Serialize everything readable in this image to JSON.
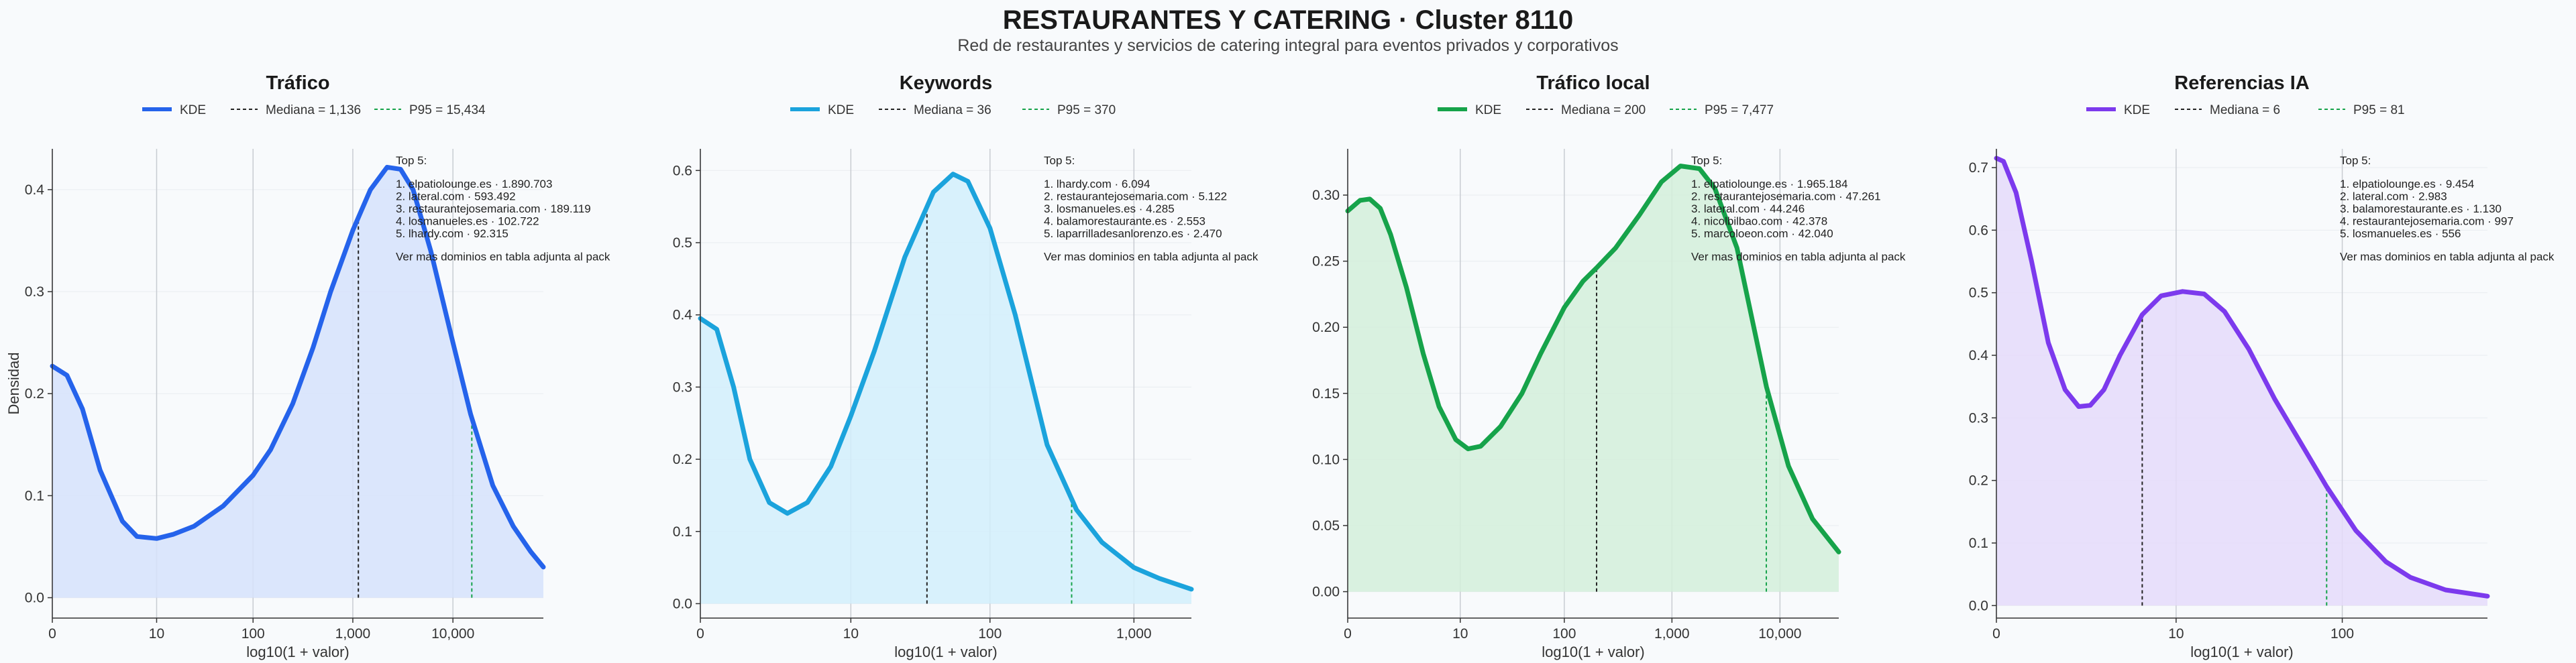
{
  "header": {
    "title": "RESTAURANTES Y CATERING · Cluster 8110",
    "subtitle": "Red de restaurantes y servicios de catering integral para eventos privados y corporativos"
  },
  "chart_data": [
    {
      "type": "area",
      "title": "Tráfico",
      "xlabel": "log10(1 + valor)",
      "ylabel": "Densidad",
      "color": "#2563eb",
      "fill": "#d6e2fb",
      "x_scale": "log10(1+x)",
      "xlim": [
        0,
        80000
      ],
      "ylim": [
        -0.02,
        0.44
      ],
      "x_ticks": [
        0,
        10,
        100,
        1000,
        10000
      ],
      "x_tick_labels": [
        "0",
        "10",
        "100",
        "1,000",
        "10,000"
      ],
      "y_ticks": [
        0,
        0.1,
        0.2,
        0.3,
        0.4
      ],
      "y_tick_labels": [
        "0.0",
        "0.1",
        "0.2",
        "0.3",
        "0.4"
      ],
      "legend": {
        "kde": "KDE",
        "median": "Mediana = 1,136",
        "p95": "P95 = 15,434"
      },
      "median": 1136,
      "p95": 15434,
      "kde": {
        "x": [
          0,
          0.4,
          1,
          2,
          4,
          6,
          10,
          15,
          25,
          50,
          100,
          150,
          250,
          400,
          600,
          1000,
          1500,
          2200,
          3000,
          4000,
          6000,
          10000,
          15000,
          25000,
          40000,
          60000,
          80000
        ],
        "y": [
          0.227,
          0.218,
          0.185,
          0.125,
          0.075,
          0.06,
          0.058,
          0.062,
          0.07,
          0.09,
          0.12,
          0.145,
          0.19,
          0.245,
          0.3,
          0.36,
          0.4,
          0.422,
          0.42,
          0.4,
          0.34,
          0.25,
          0.18,
          0.11,
          0.07,
          0.045,
          0.03
        ]
      },
      "annotation": {
        "heading": "Top 5:",
        "items": [
          "1. elpatiolounge.es · 1.890.703",
          "2. lateral.com · 593.492",
          "3. restaurantejosemaria.com · 189.119",
          "4. losmanueles.es · 102.722",
          "5. lhardy.com · 92.315"
        ],
        "footer": "Ver mas dominios en tabla adjunta al pack"
      }
    },
    {
      "type": "area",
      "title": "Keywords",
      "xlabel": "log10(1 + valor)",
      "ylabel": "",
      "color": "#1ba3dc",
      "fill": "#d2eefb",
      "x_scale": "log10(1+x)",
      "xlim": [
        0,
        2500
      ],
      "ylim": [
        -0.02,
        0.63
      ],
      "x_ticks": [
        0,
        10,
        100,
        1000
      ],
      "x_tick_labels": [
        "0",
        "10",
        "100",
        "1,000"
      ],
      "y_ticks": [
        0,
        0.1,
        0.2,
        0.3,
        0.4,
        0.5,
        0.6
      ],
      "y_tick_labels": [
        "0.0",
        "0.1",
        "0.2",
        "0.3",
        "0.4",
        "0.5",
        "0.6"
      ],
      "legend": {
        "kde": "KDE",
        "median": "Mediana = 36",
        "p95": "P95 = 370"
      },
      "median": 36,
      "p95": 370,
      "kde": {
        "x": [
          0,
          0.3,
          0.7,
          1.2,
          2,
          3,
          4.5,
          7,
          10,
          15,
          25,
          40,
          55,
          70,
          100,
          150,
          250,
          400,
          600,
          1000,
          1500,
          2500
        ],
        "y": [
          0.395,
          0.38,
          0.3,
          0.2,
          0.14,
          0.125,
          0.14,
          0.19,
          0.26,
          0.35,
          0.48,
          0.57,
          0.595,
          0.585,
          0.52,
          0.4,
          0.22,
          0.13,
          0.085,
          0.05,
          0.035,
          0.02
        ]
      },
      "annotation": {
        "heading": "Top 5:",
        "items": [
          "1. lhardy.com · 6.094",
          "2. restaurantejosemaria.com · 5.122",
          "3. losmanueles.es · 4.285",
          "4. balamorestaurante.es · 2.553",
          "5. laparrilladesanlorenzo.es · 2.470"
        ],
        "footer": "Ver mas dominios en tabla adjunta al pack"
      }
    },
    {
      "type": "area",
      "title": "Tráfico local",
      "xlabel": "log10(1 + valor)",
      "ylabel": "",
      "color": "#16a34a",
      "fill": "#d4eedb",
      "x_scale": "log10(1+x)",
      "xlim": [
        0,
        35000
      ],
      "ylim": [
        -0.02,
        0.335
      ],
      "x_ticks": [
        0,
        10,
        100,
        1000,
        10000
      ],
      "x_tick_labels": [
        "0",
        "10",
        "100",
        "1,000",
        "10,000"
      ],
      "y_ticks": [
        0,
        0.05,
        0.1,
        0.15,
        0.2,
        0.25,
        0.3
      ],
      "y_tick_labels": [
        "0.00",
        "0.05",
        "0.10",
        "0.15",
        "0.20",
        "0.25",
        "0.30"
      ],
      "legend": {
        "kde": "KDE",
        "median": "Mediana = 200",
        "p95": "P95 = 7,477"
      },
      "median": 200,
      "p95": 7477,
      "kde": {
        "x": [
          0,
          0.3,
          0.6,
          1,
          1.5,
          2.5,
          4,
          6,
          9,
          12,
          16,
          25,
          40,
          60,
          100,
          150,
          200,
          300,
          500,
          800,
          1200,
          1800,
          2500,
          4000,
          7500,
          12000,
          20000,
          35000
        ],
        "y": [
          0.288,
          0.296,
          0.297,
          0.29,
          0.27,
          0.23,
          0.18,
          0.14,
          0.115,
          0.108,
          0.11,
          0.125,
          0.15,
          0.18,
          0.215,
          0.235,
          0.245,
          0.26,
          0.285,
          0.31,
          0.322,
          0.32,
          0.305,
          0.26,
          0.155,
          0.095,
          0.055,
          0.03
        ]
      },
      "annotation": {
        "heading": "Top 5:",
        "items": [
          "1. elpatiolounge.es · 1.965.184",
          "2. restaurantejosemaria.com · 47.261",
          "3. lateral.com · 44.246",
          "4. nicolbilbao.com · 42.378",
          "5. marcoloeon.com · 42.040"
        ],
        "footer": "Ver mas dominios en tabla adjunta al pack"
      }
    },
    {
      "type": "area",
      "title": "Referencias IA",
      "xlabel": "log10(1 + valor)",
      "ylabel": "",
      "color": "#7c3aed",
      "fill": "#e5dafa",
      "x_scale": "log10(1+x)",
      "xlim": [
        0,
        700
      ],
      "ylim": [
        -0.02,
        0.73
      ],
      "x_ticks": [
        0,
        10,
        100
      ],
      "x_tick_labels": [
        "0",
        "10",
        "100"
      ],
      "y_ticks": [
        0,
        0.1,
        0.2,
        0.3,
        0.4,
        0.5,
        0.6,
        0.7
      ],
      "y_tick_labels": [
        "0.0",
        "0.1",
        "0.2",
        "0.3",
        "0.4",
        "0.5",
        "0.6",
        "0.7"
      ],
      "legend": {
        "kde": "KDE",
        "median": "Mediana = 6",
        "p95": "P95 = 81"
      },
      "median": 6,
      "p95": 81,
      "kde": {
        "x": [
          0,
          0.1,
          0.3,
          0.6,
          1,
          1.5,
          2,
          2.5,
          3.2,
          4.2,
          6,
          8,
          11,
          15,
          20,
          28,
          40,
          60,
          81,
          120,
          180,
          250,
          400,
          700
        ],
        "y": [
          0.715,
          0.71,
          0.66,
          0.55,
          0.42,
          0.345,
          0.318,
          0.32,
          0.345,
          0.4,
          0.465,
          0.495,
          0.502,
          0.498,
          0.47,
          0.41,
          0.33,
          0.25,
          0.19,
          0.12,
          0.07,
          0.045,
          0.025,
          0.015
        ]
      },
      "annotation": {
        "heading": "Top 5:",
        "items": [
          "1. elpatiolounge.es · 9.454",
          "2. lateral.com · 2.983",
          "3. balamorestaurante.es · 1.130",
          "4. restaurantejosemaria.com · 997",
          "5. losmanueles.es · 556"
        ],
        "footer": "Ver mas dominios en tabla adjunta al pack"
      }
    }
  ]
}
